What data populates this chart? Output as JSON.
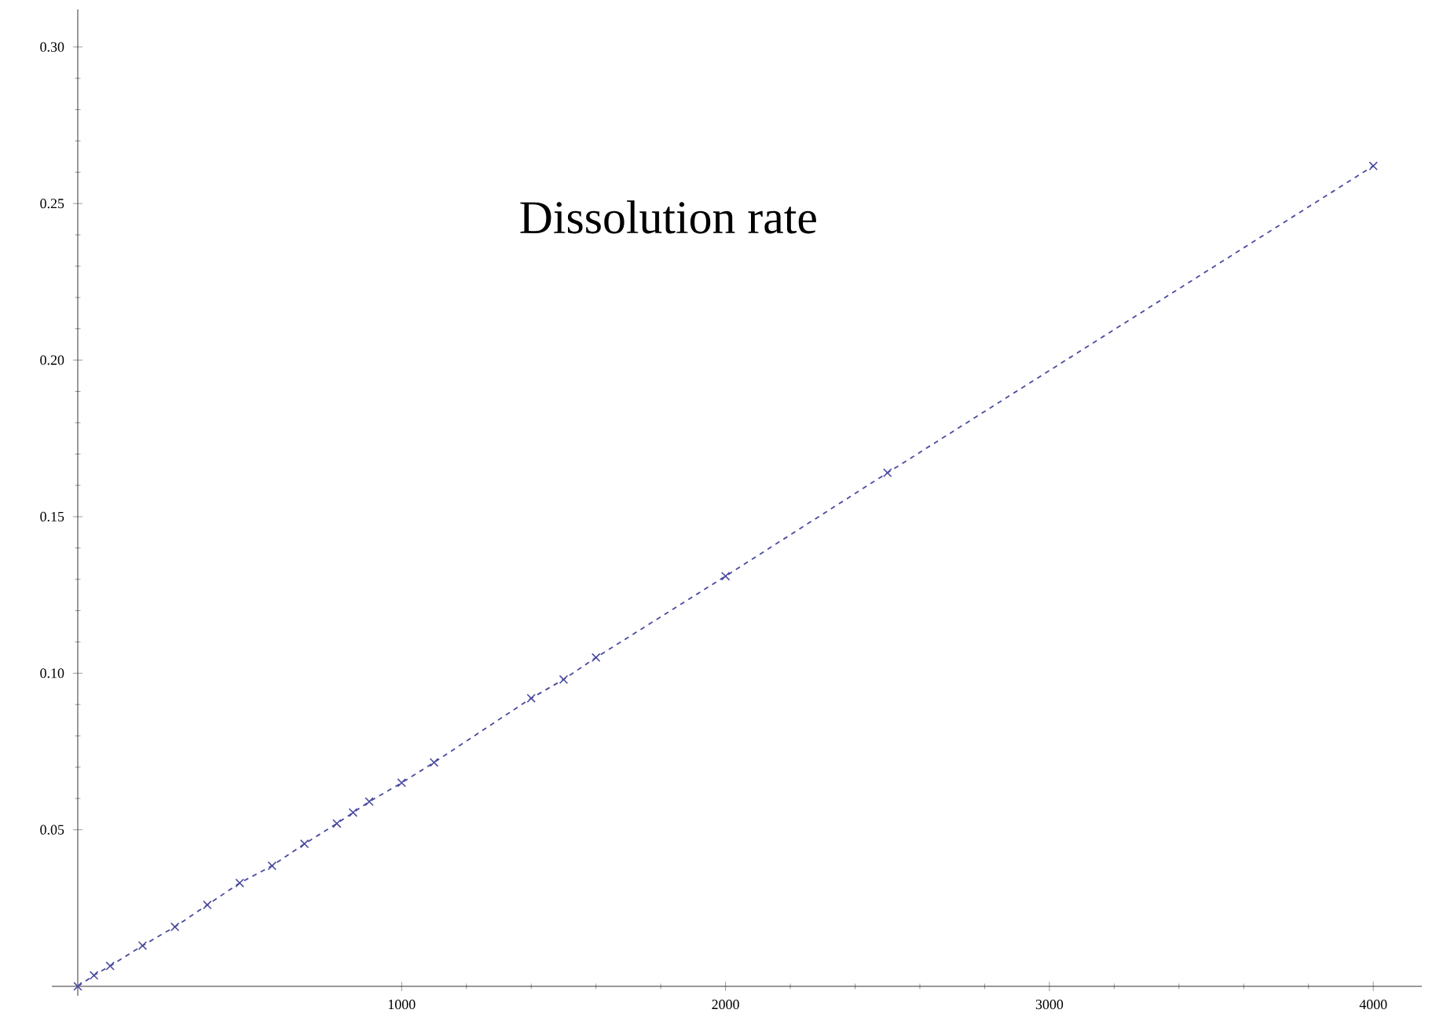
{
  "chart_data": {
    "type": "line",
    "title": "Dissolution rate",
    "x": [
      0,
      50,
      100,
      200,
      300,
      400,
      500,
      600,
      700,
      800,
      850,
      900,
      1000,
      1100,
      1400,
      1500,
      1600,
      2000,
      2500,
      4000
    ],
    "series": [
      {
        "color": "#4a4aa0",
        "values": [
          0,
          0.0035,
          0.0065,
          0.013,
          0.019,
          0.026,
          0.033,
          0.0385,
          0.0455,
          0.052,
          0.0555,
          0.059,
          0.065,
          0.0715,
          0.092,
          0.098,
          0.105,
          0.131,
          0.164,
          0.262
        ]
      }
    ],
    "xlim": [
      -80,
      4150
    ],
    "ylim": [
      -0.003,
      0.312
    ],
    "xticks": [
      1000,
      2000,
      3000,
      4000
    ],
    "yticks": [
      0.05,
      {
        "value": 0.1,
        "label": "0.10"
      },
      0.15,
      {
        "value": 0.2,
        "label": "0.20"
      },
      0.25,
      {
        "value": 0.3,
        "label": "0.30"
      }
    ],
    "grid": false,
    "marker": "cross",
    "line_style": "dashed"
  }
}
